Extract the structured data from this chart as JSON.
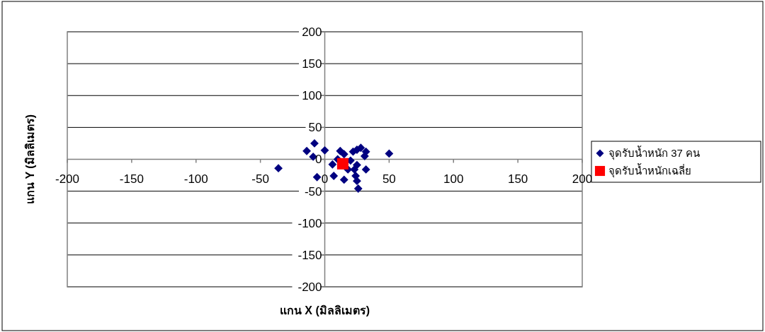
{
  "chart_data": {
    "type": "scatter",
    "xlabel": "แกน X (มิลลิเมตร)",
    "ylabel": "แกน Y (มิลลิเมตร)",
    "xlim": [
      -200,
      200
    ],
    "xticks": [
      -200,
      -150,
      -100,
      -50,
      0,
      50,
      100,
      150,
      200
    ],
    "ylim": [
      -200,
      200
    ],
    "yticks": [
      -200,
      -150,
      -100,
      -50,
      0,
      50,
      100,
      150,
      200
    ],
    "grid": "y",
    "legend": "right",
    "series": [
      {
        "name": "จุดรับน้ำหนัก 37 คน",
        "color": "#000080",
        "marker": "diamond",
        "x": [
          -36,
          -8,
          -14,
          -9,
          0,
          -6,
          6,
          7,
          15,
          15,
          22,
          25,
          28,
          32,
          31,
          25,
          18,
          32,
          24,
          25,
          26,
          50,
          12,
          10,
          20,
          23
        ],
        "values": [
          -14,
          25,
          13,
          4,
          14,
          -28,
          -8,
          -26,
          -32,
          8,
          12,
          15,
          18,
          12,
          5,
          -9,
          -16,
          -16,
          -26,
          -34,
          -46,
          9,
          13,
          0,
          -2,
          -16
        ]
      },
      {
        "name": "จุดรับน้ำหนักเฉลี่ย",
        "color": "#ff0000",
        "marker": "square",
        "x": [
          14
        ],
        "values": [
          -7
        ]
      }
    ]
  }
}
